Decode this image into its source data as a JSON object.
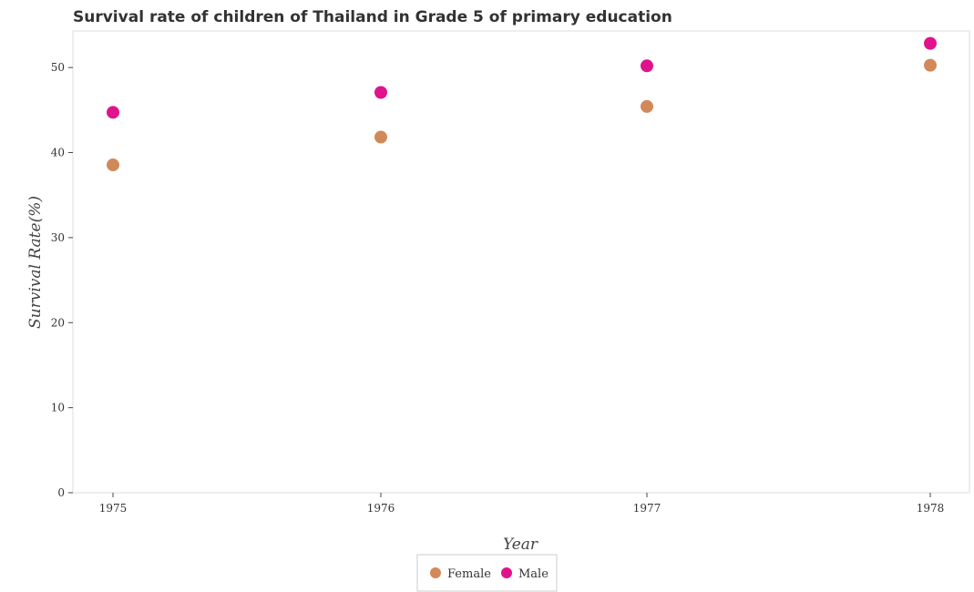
{
  "chart_data": {
    "type": "scatter",
    "title": "Survival rate of children of Thailand in Grade 5 of primary education",
    "xlabel": "Year",
    "ylabel": "Survival Rate(%)",
    "categories": [
      "1975",
      "1976",
      "1977",
      "1978"
    ],
    "y_ticks": [
      "0",
      "10",
      "20",
      "30",
      "40",
      "50"
    ],
    "ylim": [
      0,
      54.3
    ],
    "grid": false,
    "legend_position": "bottom-center",
    "series": [
      {
        "name": "Female",
        "color": "#d2895a",
        "values": [
          38.55,
          41.82,
          45.42,
          50.27
        ]
      },
      {
        "name": "Male",
        "color": "#e0138c",
        "values": [
          44.73,
          47.07,
          50.2,
          52.84
        ]
      }
    ]
  }
}
